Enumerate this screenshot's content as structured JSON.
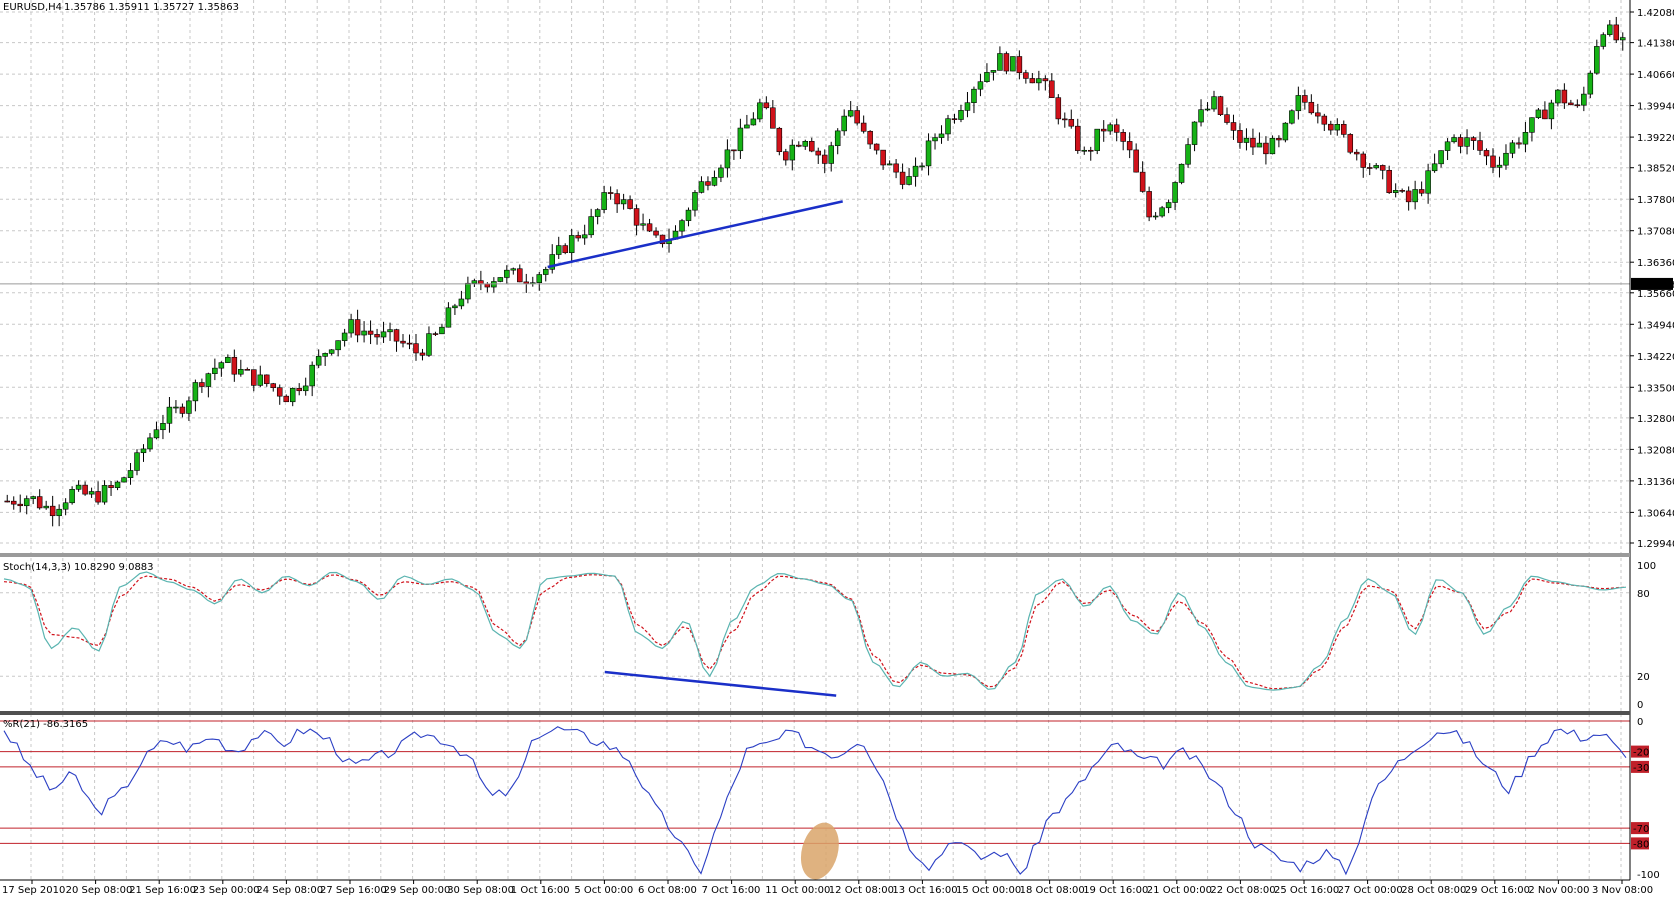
{
  "chart_data": {
    "type": "candlestick",
    "symbol_header": "EURUSD,H4",
    "ohlc_header": "1.35786 1.35911 1.35727 1.35863",
    "last_price_label": "1.35863",
    "colors": {
      "bull": "#16b216",
      "bear": "#d0121b",
      "stoch_main": "#5ab4b0",
      "stoch_signal": "#d0121b",
      "wpr": "#2b3fc4",
      "divergence": "#1a2fc8",
      "highlight": "#d9a46a",
      "level": "#c0202a"
    },
    "price_axis": {
      "ticks": [
        "1.42080",
        "1.41380",
        "1.40660",
        "1.39940",
        "1.39220",
        "1.38520",
        "1.37800",
        "1.37080",
        "1.36360",
        "1.35660",
        "1.34940",
        "1.34220",
        "1.33500",
        "1.32800",
        "1.32080",
        "1.31360",
        "1.30640",
        "1.29940"
      ],
      "ylim": [
        1.2994,
        1.4208
      ]
    },
    "time_axis": {
      "labels": [
        "17 Sep 2010",
        "20 Sep 08:00",
        "21 Sep 16:00",
        "23 Sep 00:00",
        "24 Sep 08:00",
        "27 Sep 16:00",
        "29 Sep 00:00",
        "30 Sep 08:00",
        "1 Oct 16:00",
        "5 Oct 00:00",
        "6 Oct 08:00",
        "7 Oct 16:00",
        "11 Oct 00:00",
        "12 Oct 08:00",
        "13 Oct 16:00",
        "15 Oct 00:00",
        "18 Oct 08:00",
        "19 Oct 16:00",
        "21 Oct 00:00",
        "22 Oct 08:00",
        "25 Oct 16:00",
        "27 Oct 00:00",
        "28 Oct 08:00",
        "29 Oct 16:00",
        "2 Nov 00:00",
        "3 Nov 08:00"
      ]
    },
    "price_path": [
      1.309,
      1.31,
      1.307,
      1.311,
      1.31,
      1.312,
      1.318,
      1.327,
      1.33,
      1.337,
      1.341,
      1.338,
      1.336,
      1.333,
      1.338,
      1.345,
      1.349,
      1.347,
      1.346,
      1.343,
      1.347,
      1.356,
      1.359,
      1.361,
      1.36,
      1.362,
      1.368,
      1.372,
      1.38,
      1.375,
      1.368,
      1.37,
      1.38,
      1.386,
      1.392,
      1.4,
      1.388,
      1.393,
      1.386,
      1.4,
      1.39,
      1.385,
      1.382,
      1.392,
      1.398,
      1.405,
      1.41,
      1.408,
      1.405,
      1.396,
      1.388,
      1.395,
      1.39,
      1.374,
      1.379,
      1.395,
      1.4,
      1.392,
      1.39,
      1.39,
      1.401,
      1.398,
      1.392,
      1.387,
      1.382,
      1.377,
      1.383,
      1.392,
      1.391,
      1.386,
      1.391,
      1.396,
      1.402,
      1.398,
      1.418,
      1.413
    ],
    "stochastic": {
      "label": "Stoch(14,3,3) 10.8290 9.0883",
      "ylim": [
        0,
        100
      ],
      "axis_ticks": [
        "100",
        "80",
        "20",
        "0"
      ],
      "main": [
        90,
        85,
        40,
        55,
        38,
        85,
        95,
        88,
        82,
        72,
        90,
        80,
        92,
        85,
        95,
        88,
        75,
        92,
        86,
        90,
        82,
        50,
        40,
        90,
        92,
        94,
        92,
        50,
        40,
        60,
        20,
        60,
        85,
        94,
        90,
        86,
        75,
        30,
        12,
        30,
        20,
        22,
        10,
        30,
        80,
        90,
        70,
        85,
        60,
        50,
        80,
        55,
        30,
        12,
        10,
        12,
        28,
        60,
        90,
        80,
        50,
        90,
        80,
        50,
        70,
        92,
        88,
        85,
        82,
        84
      ],
      "signal": [
        88,
        86,
        50,
        48,
        42,
        78,
        92,
        90,
        84,
        74,
        86,
        82,
        90,
        86,
        93,
        89,
        78,
        88,
        86,
        88,
        84,
        55,
        42,
        82,
        91,
        93,
        92,
        56,
        42,
        56,
        25,
        52,
        80,
        92,
        90,
        87,
        76,
        35,
        15,
        28,
        22,
        21,
        12,
        26,
        72,
        88,
        72,
        82,
        64,
        52,
        74,
        58,
        34,
        15,
        11,
        12,
        25,
        55,
        85,
        82,
        54,
        85,
        80,
        54,
        66,
        90,
        87,
        85,
        83,
        84
      ],
      "divergence_line": [
        [
          0.371,
          23
        ],
        [
          0.513,
          6
        ]
      ]
    },
    "williams_r": {
      "label": "%R(21) -86.3165",
      "ylim": [
        -100,
        0
      ],
      "levels": [
        -20,
        -30,
        -70,
        -80
      ],
      "level_labels": [
        "-20",
        "-30",
        "-70",
        "-80"
      ],
      "axis_ticks": [
        "0",
        "-100"
      ],
      "values": [
        -5,
        -28,
        -45,
        -35,
        -60,
        -48,
        -25,
        -12,
        -18,
        -10,
        -20,
        -8,
        -15,
        -5,
        -12,
        -30,
        -25,
        -18,
        -8,
        -12,
        -22,
        -50,
        -45,
        -8,
        -5,
        -10,
        -15,
        -25,
        -55,
        -75,
        -100,
        -60,
        -20,
        -15,
        -8,
        -18,
        -22,
        -10,
        -40,
        -80,
        -95,
        -75,
        -90,
        -85,
        -100,
        -65,
        -50,
        -30,
        -15,
        -25,
        -28,
        -20,
        -35,
        -55,
        -80,
        -90,
        -95,
        -85,
        -100,
        -50,
        -30,
        -15,
        -5,
        -12,
        -30,
        -45,
        -20,
        -5,
        -10,
        -8,
        -25
      ],
      "highlight_index_fraction": 0.503
    },
    "price_divergence_line": [
      [
        0.336,
        1.3625
      ],
      [
        0.517,
        1.3775
      ]
    ]
  }
}
